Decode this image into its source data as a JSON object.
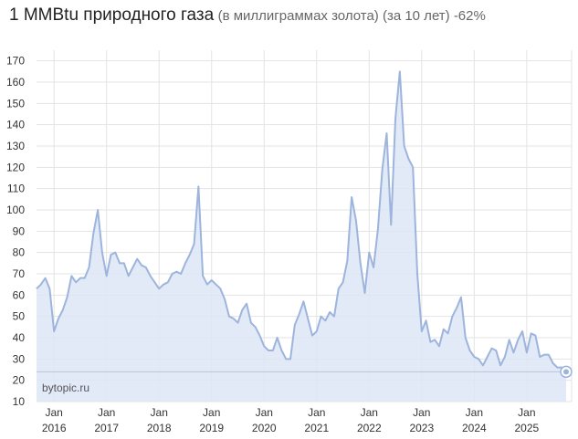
{
  "title": {
    "main": "1 MMBtu природного газа",
    "sub": "(в миллиграммах золота) (за 10 лет) -62%"
  },
  "watermark": "bytopic.ru",
  "colors": {
    "line": "#9db4dc",
    "fill": "#dde6f7",
    "grid": "#e3e3e3",
    "last_line": "#b9c4dc"
  },
  "chart_data": {
    "type": "area",
    "title": "1 MMBtu природного газа (в миллиграммах золота) (за 10 лет) -62%",
    "xlabel": "",
    "ylabel": "",
    "ylim": [
      10,
      175
    ],
    "yticks": [
      10,
      20,
      30,
      40,
      50,
      60,
      70,
      80,
      90,
      100,
      110,
      120,
      130,
      140,
      150,
      160,
      170
    ],
    "xticks": [
      {
        "month": "Jan",
        "year": "2016"
      },
      {
        "month": "Jan",
        "year": "2017"
      },
      {
        "month": "Jan",
        "year": "2018"
      },
      {
        "month": "Jan",
        "year": "2019"
      },
      {
        "month": "Jan",
        "year": "2020"
      },
      {
        "month": "Jan",
        "year": "2021"
      },
      {
        "month": "Jan",
        "year": "2022"
      },
      {
        "month": "Jan",
        "year": "2023"
      },
      {
        "month": "Jan",
        "year": "2024"
      },
      {
        "month": "Jan",
        "year": "2025"
      }
    ],
    "grid": true,
    "legend": "none",
    "x_start": "2015-09",
    "x_step": "month",
    "values": [
      63,
      65,
      68,
      63,
      43,
      49,
      53,
      59,
      69,
      66,
      68,
      68,
      73,
      89,
      100,
      80,
      69,
      79,
      80,
      75,
      75,
      69,
      73,
      77,
      74,
      73,
      69,
      66,
      63,
      65,
      66,
      70,
      71,
      70,
      75,
      79,
      84,
      111,
      69,
      65,
      67,
      65,
      63,
      58,
      50,
      49,
      47,
      53,
      56,
      47,
      45,
      41,
      36,
      34,
      34,
      40,
      34,
      30,
      30,
      46,
      51,
      57,
      49,
      41,
      43,
      50,
      48,
      52,
      50,
      63,
      66,
      76,
      106,
      95,
      75,
      61,
      80,
      73,
      91,
      119,
      136,
      93,
      143,
      165,
      130,
      124,
      120,
      70,
      43,
      48,
      38,
      39,
      36,
      44,
      42,
      50,
      54,
      59,
      40,
      34,
      31,
      30,
      27,
      31,
      35,
      34,
      27,
      31,
      39,
      33,
      39,
      43,
      33,
      42,
      41,
      31,
      32,
      32,
      28,
      26,
      26,
      24
    ],
    "last_value": 24
  }
}
